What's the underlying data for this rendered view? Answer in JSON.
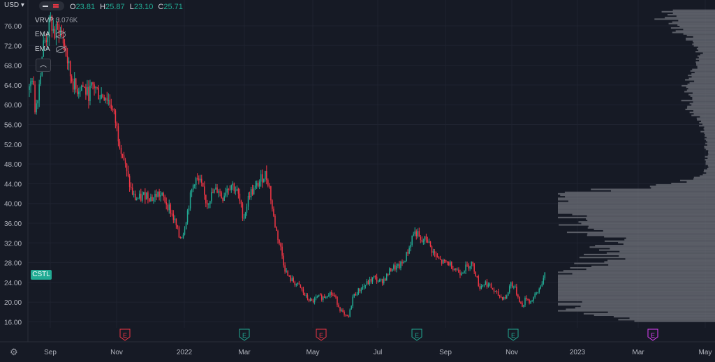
{
  "symbol": "CSTL",
  "currency": "USD",
  "legend": {
    "o_label": "O",
    "o": "23.81",
    "h_label": "H",
    "h": "25.87",
    "l_label": "L",
    "l": "23.10",
    "c_label": "C",
    "c": "25.71"
  },
  "indicators": [
    {
      "label": "VRVP",
      "value": "3.076K"
    },
    {
      "label": "EMA"
    },
    {
      "label": "EMA"
    }
  ],
  "collapse_icon": "chevron-up-icon",
  "settings_icon": "gear-icon",
  "colors": {
    "background": "#161a25",
    "up": "#22ab94",
    "down": "#f23645",
    "earnings_past": "#f23645",
    "earnings_future": "#e040fb",
    "volume_profile": "#6b6e77"
  },
  "chart_data": {
    "type": "candlestick",
    "y_ticks": [
      "76.00",
      "72.00",
      "68.00",
      "64.00",
      "60.00",
      "56.00",
      "52.00",
      "48.00",
      "44.00",
      "40.00",
      "36.00",
      "32.00",
      "28.00",
      "24.00",
      "20.00",
      "16.00"
    ],
    "ylim": [
      14.5,
      80
    ],
    "x_ticks": [
      "Sep",
      "Nov",
      "2022",
      "Mar",
      "May",
      "Jul",
      "Sep",
      "Nov",
      "2023",
      "Mar",
      "May"
    ],
    "earnings_markers": [
      {
        "label": "E",
        "position": "Nov",
        "color": "#f23645"
      },
      {
        "label": "E",
        "position": "Mar",
        "color": "#22ab94"
      },
      {
        "label": "E",
        "position": "May",
        "color": "#f23645"
      },
      {
        "label": "E",
        "position": "Aug",
        "color": "#22ab94"
      },
      {
        "label": "E",
        "position": "Nov",
        "color": "#22ab94"
      },
      {
        "label": "E",
        "position": "Mar 2023",
        "color": "#e040fb"
      }
    ],
    "price_path": [
      [
        0,
        63
      ],
      [
        3,
        66
      ],
      [
        6,
        59
      ],
      [
        10,
        64
      ],
      [
        14,
        72
      ],
      [
        18,
        74
      ],
      [
        22,
        77
      ],
      [
        26,
        74
      ],
      [
        30,
        76
      ],
      [
        36,
        72
      ],
      [
        42,
        66
      ],
      [
        48,
        63
      ],
      [
        54,
        64
      ],
      [
        60,
        62
      ],
      [
        66,
        64
      ],
      [
        72,
        62
      ],
      [
        78,
        62
      ],
      [
        84,
        60
      ],
      [
        88,
        57
      ],
      [
        92,
        53
      ],
      [
        96,
        50
      ],
      [
        100,
        46
      ],
      [
        104,
        43
      ],
      [
        108,
        41
      ],
      [
        114,
        41
      ],
      [
        120,
        42
      ],
      [
        126,
        41
      ],
      [
        132,
        42
      ],
      [
        138,
        41
      ],
      [
        144,
        39
      ],
      [
        150,
        36
      ],
      [
        154,
        33
      ],
      [
        158,
        34
      ],
      [
        162,
        38
      ],
      [
        166,
        42
      ],
      [
        170,
        45
      ],
      [
        176,
        44
      ],
      [
        182,
        40
      ],
      [
        188,
        42
      ],
      [
        194,
        43
      ],
      [
        198,
        41
      ],
      [
        202,
        43
      ],
      [
        208,
        44
      ],
      [
        214,
        42
      ],
      [
        220,
        37
      ],
      [
        226,
        42
      ],
      [
        232,
        43
      ],
      [
        238,
        45
      ],
      [
        242,
        46
      ],
      [
        246,
        44
      ],
      [
        250,
        38
      ],
      [
        254,
        34
      ],
      [
        258,
        31
      ],
      [
        262,
        27
      ],
      [
        266,
        25
      ],
      [
        272,
        24
      ],
      [
        278,
        23
      ],
      [
        284,
        21
      ],
      [
        290,
        20
      ],
      [
        296,
        21
      ],
      [
        302,
        21
      ],
      [
        308,
        22
      ],
      [
        314,
        21
      ],
      [
        318,
        19
      ],
      [
        324,
        17
      ],
      [
        328,
        17
      ],
      [
        332,
        21
      ],
      [
        336,
        22
      ],
      [
        342,
        23
      ],
      [
        348,
        24
      ],
      [
        354,
        25
      ],
      [
        360,
        24
      ],
      [
        366,
        25
      ],
      [
        372,
        27
      ],
      [
        378,
        27
      ],
      [
        384,
        28
      ],
      [
        390,
        31
      ],
      [
        394,
        34
      ],
      [
        398,
        34
      ],
      [
        402,
        32
      ],
      [
        408,
        33
      ],
      [
        412,
        31
      ],
      [
        418,
        29
      ],
      [
        424,
        28
      ],
      [
        430,
        28
      ],
      [
        436,
        27
      ],
      [
        442,
        26
      ],
      [
        448,
        27
      ],
      [
        454,
        28
      ],
      [
        458,
        26
      ],
      [
        462,
        23
      ],
      [
        468,
        24
      ],
      [
        474,
        23
      ],
      [
        478,
        22
      ],
      [
        484,
        21
      ],
      [
        490,
        21
      ],
      [
        494,
        24
      ],
      [
        498,
        23
      ],
      [
        502,
        21
      ],
      [
        506,
        19
      ],
      [
        510,
        21
      ],
      [
        514,
        20
      ],
      [
        518,
        21
      ],
      [
        522,
        22
      ],
      [
        526,
        24
      ],
      [
        530,
        25.7
      ]
    ]
  }
}
